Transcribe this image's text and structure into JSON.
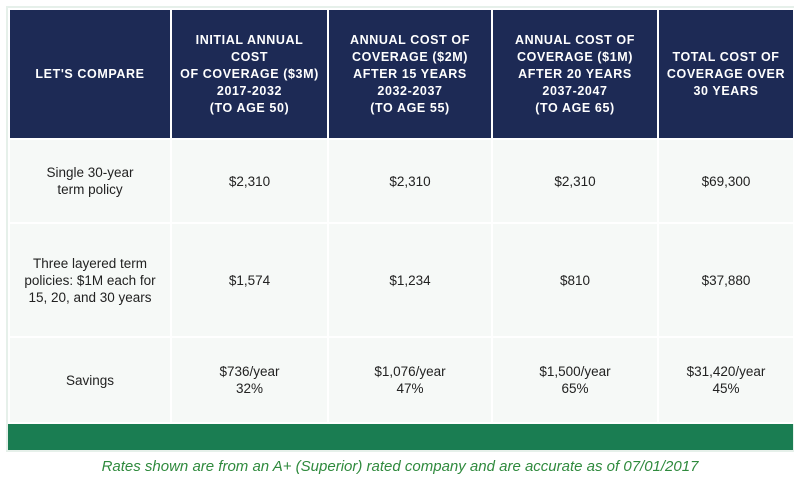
{
  "header": [
    {
      "lines": [
        "LET'S COMPARE"
      ]
    },
    {
      "lines": [
        "INITIAL ANNUAL COST",
        "OF COVERAGE ($3M)",
        "2017-2032",
        "(TO AGE 50)"
      ]
    },
    {
      "lines": [
        "ANNUAL COST OF",
        "COVERAGE ($2M)",
        "AFTER 15 YEARS",
        "2032-2037",
        "(TO AGE 55)"
      ]
    },
    {
      "lines": [
        "ANNUAL COST OF",
        "COVERAGE ($1M)",
        "AFTER 20 YEARS",
        "2037-2047",
        "(TO AGE 65)"
      ]
    },
    {
      "lines": [
        "TOTAL COST OF",
        "COVERAGE OVER",
        "30 YEARS"
      ]
    }
  ],
  "rows": [
    {
      "label": [
        "Single 30-year",
        "term policy"
      ],
      "cells": [
        [
          "$2,310"
        ],
        [
          "$2,310"
        ],
        [
          "$2,310"
        ],
        [
          "$69,300"
        ]
      ]
    },
    {
      "label": [
        "Three layered term",
        "policies: $1M each for",
        "15, 20, and 30 years"
      ],
      "cells": [
        [
          "$1,574"
        ],
        [
          "$1,234"
        ],
        [
          "$810"
        ],
        [
          "$37,880"
        ]
      ]
    },
    {
      "label": [
        "Savings"
      ],
      "cells": [
        [
          "$736/year",
          "32%"
        ],
        [
          "$1,076/year",
          "47%"
        ],
        [
          "$1,500/year",
          "65%"
        ],
        [
          "$31,420/year",
          "45%"
        ]
      ]
    }
  ],
  "footnote": "Rates shown are from an A+ (Superior) rated company and are accurate as of 07/01/2017",
  "colors": {
    "header_bg": "#1d2a55",
    "bar": "#1a7d52",
    "footnote": "#2f8a3d"
  }
}
